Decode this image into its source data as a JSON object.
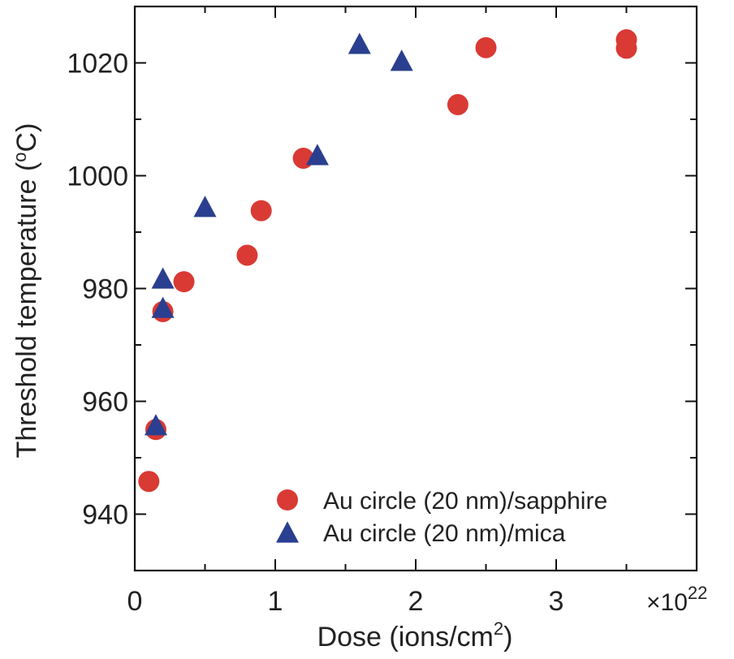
{
  "chart_data": {
    "type": "scatter",
    "title": "",
    "xlabel": "Dose (ions/cm",
    "xlabel_sup": "2",
    "xlabel_close": ")",
    "ylabel": "Threshold temperature (",
    "ylabel_sup": "o",
    "ylabel_end": "C)",
    "x_multiplier": "×10",
    "x_multiplier_exp": "22",
    "xlim": [
      0,
      4
    ],
    "ylim": [
      930,
      1030
    ],
    "x_ticks": [
      0,
      1,
      2,
      3
    ],
    "x_tick_labels": [
      "0",
      "1",
      "2",
      "3"
    ],
    "y_ticks": [
      940,
      960,
      980,
      1000,
      1020
    ],
    "y_tick_labels": [
      "940",
      "960",
      "980",
      "1000",
      "1020"
    ],
    "grid": false,
    "legend_position": "bottom-right",
    "series": [
      {
        "name": "Au circle (20 nm)/sapphire",
        "marker": "circle",
        "color": "#d93a34",
        "x": [
          0.1,
          0.15,
          0.2,
          0.35,
          0.8,
          0.9,
          1.2,
          2.3,
          2.5,
          3.5,
          3.5
        ],
        "y": [
          945.8,
          955.0,
          975.9,
          981.2,
          985.9,
          993.8,
          1003.1,
          1012.6,
          1022.7,
          1022.6,
          1024.1
        ]
      },
      {
        "name": "Au circle (20 nm)/mica",
        "marker": "triangle",
        "color": "#2a3f8f",
        "x": [
          0.15,
          0.2,
          0.2,
          0.5,
          1.3,
          1.6,
          1.9
        ],
        "y": [
          955.5,
          976.3,
          981.5,
          994.2,
          1003.4,
          1023.1,
          1020.1
        ]
      }
    ]
  }
}
